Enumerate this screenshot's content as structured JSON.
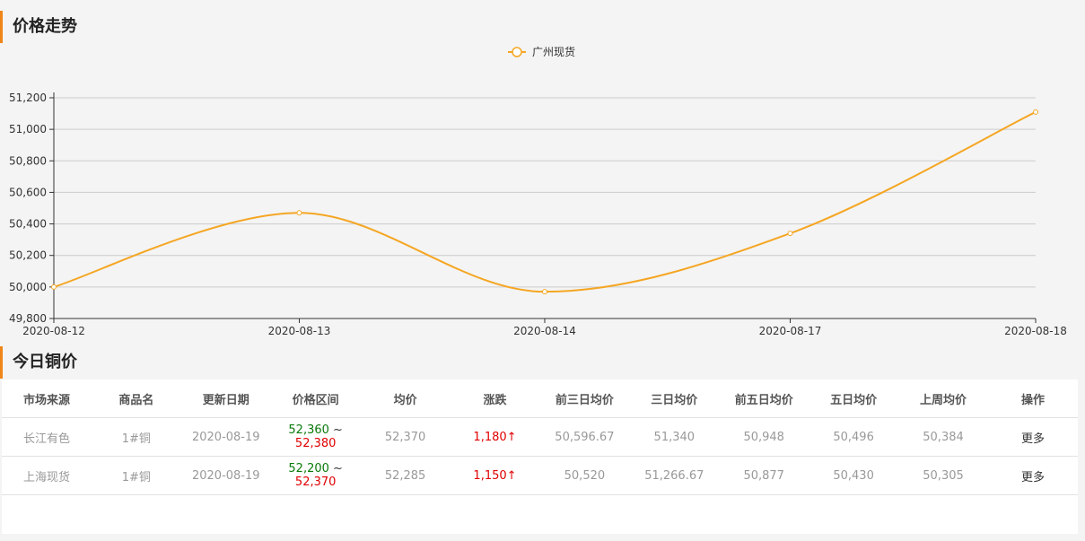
{
  "headers": {
    "trend_title": "价格走势",
    "table_title": "今日铜价"
  },
  "chart_data": {
    "type": "line",
    "title": "",
    "xlabel": "",
    "ylabel": "",
    "categories": [
      "2020-08-12",
      "2020-08-13",
      "2020-08-14",
      "2020-08-17",
      "2020-08-18"
    ],
    "series": [
      {
        "name": "广州现货",
        "color": "#f5a623",
        "values": [
          50000,
          50470,
          49970,
          50340,
          51110
        ]
      }
    ],
    "ylim": [
      49800,
      51200
    ],
    "yticks": [
      "49,800",
      "50,000",
      "50,200",
      "50,400",
      "50,600",
      "50,800",
      "51,000",
      "51,200"
    ],
    "smooth": true,
    "grid": true,
    "legend": "top-center"
  },
  "table": {
    "columns": [
      "市场来源",
      "商品名",
      "更新日期",
      "价格区间",
      "均价",
      "涨跌",
      "前三日均价",
      "三日均价",
      "前五日均价",
      "五日均价",
      "上周均价",
      "操作"
    ],
    "range_separator": "~",
    "rows": [
      {
        "market": "长江有色",
        "product": "1#铜",
        "date": "2020-08-19",
        "low": "52,360",
        "high": "52,380",
        "avg": "52,370",
        "change": "1,180↑",
        "prev3": "50,596.67",
        "avg3": "51,340",
        "prev5": "50,948",
        "avg5": "50,496",
        "last_week": "50,384",
        "action": "更多"
      },
      {
        "market": "上海现货",
        "product": "1#铜",
        "date": "2020-08-19",
        "low": "52,200",
        "high": "52,370",
        "avg": "52,285",
        "change": "1,150↑",
        "prev3": "50,520",
        "avg3": "51,266.67",
        "prev5": "50,877",
        "avg5": "50,430",
        "last_week": "50,305",
        "action": "更多"
      }
    ]
  }
}
